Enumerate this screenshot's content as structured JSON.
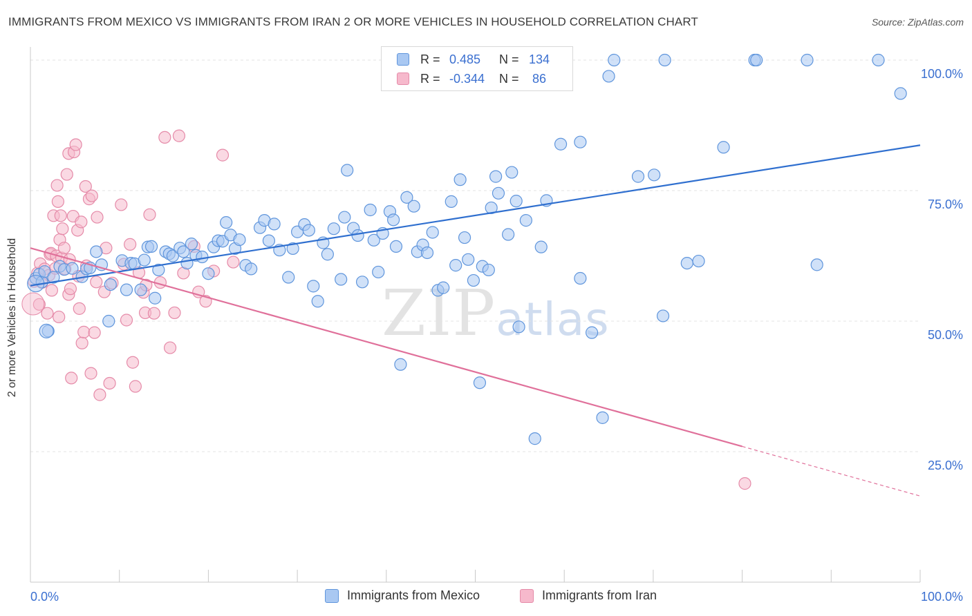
{
  "title": "IMMIGRANTS FROM MEXICO VS IMMIGRANTS FROM IRAN 2 OR MORE VEHICLES IN HOUSEHOLD CORRELATION CHART",
  "source": "Source: ZipAtlas.com",
  "watermark": {
    "zip": "ZIP",
    "atlas": "atlas"
  },
  "legend": {
    "r_label": "R =",
    "n_label": "N =",
    "mexico": {
      "r": "0.485",
      "n": "134"
    },
    "iran": {
      "r": "-0.344",
      "n": "86"
    }
  },
  "colors": {
    "mexico_fill": "#a9c8f2",
    "mexico_stroke": "#5f95dc",
    "mexico_line": "#2f6fcf",
    "iran_fill": "#f6b9cc",
    "iran_stroke": "#e58aa8",
    "iran_line": "#e0709a",
    "tick_label": "#3a6fd0",
    "grid": "#e3e3e3"
  },
  "chart_data": {
    "type": "scatter",
    "title": "IMMIGRANTS FROM MEXICO VS IMMIGRANTS FROM IRAN 2 OR MORE VEHICLES IN HOUSEHOLD CORRELATION CHART",
    "xlabel": "",
    "ylabel": "2 or more Vehicles in Household",
    "xlim": [
      0,
      100
    ],
    "ylim": [
      0,
      104.5
    ],
    "x_tick_labels": [
      "0.0%",
      "100.0%"
    ],
    "y_ticks": [
      25,
      50,
      75,
      100
    ],
    "y_tick_labels": [
      "25.0%",
      "50.0%",
      "75.0%",
      "100.0%"
    ],
    "grid": true,
    "legend_position": "top-center",
    "series": [
      {
        "name": "Immigrants from Mexico",
        "color": "#a9c8f2",
        "trend": {
          "x": [
            0,
            100
          ],
          "y": [
            56.8,
            83.7
          ]
        },
        "points": [
          [
            0.6,
            58.2
          ],
          [
            1.0,
            59.0
          ],
          [
            1.3,
            57.5
          ],
          [
            1.6,
            59.5
          ],
          [
            2.0,
            48.1
          ],
          [
            2.6,
            58.4
          ],
          [
            3.3,
            60.5
          ],
          [
            3.8,
            59.9
          ],
          [
            4.7,
            60.1
          ],
          [
            5.8,
            58.5
          ],
          [
            6.3,
            60.0
          ],
          [
            6.7,
            60.2
          ],
          [
            7.4,
            63.3
          ],
          [
            8.0,
            60.8
          ],
          [
            8.8,
            50.0
          ],
          [
            9.0,
            57.0
          ],
          [
            10.3,
            61.6
          ],
          [
            10.8,
            56.0
          ],
          [
            11.3,
            61.1
          ],
          [
            11.7,
            61.0
          ],
          [
            12.4,
            56.0
          ],
          [
            12.8,
            61.7
          ],
          [
            13.2,
            64.2
          ],
          [
            13.6,
            64.3
          ],
          [
            14.0,
            54.4
          ],
          [
            14.4,
            59.8
          ],
          [
            15.2,
            63.3
          ],
          [
            15.6,
            62.9
          ],
          [
            16.0,
            62.5
          ],
          [
            16.8,
            64.0
          ],
          [
            17.2,
            63.3
          ],
          [
            17.6,
            61.1
          ],
          [
            18.1,
            64.8
          ],
          [
            18.6,
            62.6
          ],
          [
            19.3,
            62.3
          ],
          [
            20.0,
            59.1
          ],
          [
            20.6,
            64.2
          ],
          [
            21.1,
            65.4
          ],
          [
            21.6,
            65.3
          ],
          [
            22.0,
            68.9
          ],
          [
            22.5,
            66.5
          ],
          [
            23.0,
            63.9
          ],
          [
            23.5,
            65.6
          ],
          [
            24.2,
            60.7
          ],
          [
            24.8,
            60.0
          ],
          [
            25.8,
            67.9
          ],
          [
            26.3,
            69.3
          ],
          [
            26.8,
            65.4
          ],
          [
            27.4,
            68.6
          ],
          [
            28.0,
            63.6
          ],
          [
            29.0,
            58.4
          ],
          [
            29.5,
            63.9
          ],
          [
            30.0,
            67.1
          ],
          [
            30.8,
            68.5
          ],
          [
            31.3,
            67.4
          ],
          [
            31.8,
            56.7
          ],
          [
            32.3,
            53.8
          ],
          [
            32.9,
            65.0
          ],
          [
            33.4,
            62.8
          ],
          [
            34.1,
            67.7
          ],
          [
            34.9,
            58.0
          ],
          [
            35.3,
            69.9
          ],
          [
            35.6,
            78.9
          ],
          [
            36.3,
            67.8
          ],
          [
            36.8,
            66.4
          ],
          [
            37.3,
            57.5
          ],
          [
            38.2,
            71.3
          ],
          [
            38.6,
            65.5
          ],
          [
            39.1,
            59.4
          ],
          [
            39.6,
            66.8
          ],
          [
            40.4,
            71.0
          ],
          [
            40.8,
            69.4
          ],
          [
            41.1,
            64.3
          ],
          [
            41.6,
            41.7
          ],
          [
            42.3,
            73.7
          ],
          [
            43.1,
            72.0
          ],
          [
            43.5,
            63.3
          ],
          [
            44.1,
            64.6
          ],
          [
            44.6,
            63.1
          ],
          [
            45.2,
            67.0
          ],
          [
            45.8,
            55.9
          ],
          [
            46.4,
            56.4
          ],
          [
            47.3,
            72.9
          ],
          [
            47.8,
            60.7
          ],
          [
            48.3,
            77.1
          ],
          [
            48.8,
            66.0
          ],
          [
            49.2,
            61.8
          ],
          [
            49.8,
            57.8
          ],
          [
            50.5,
            38.2
          ],
          [
            50.8,
            60.5
          ],
          [
            51.5,
            59.8
          ],
          [
            51.8,
            71.7
          ],
          [
            52.3,
            77.7
          ],
          [
            52.6,
            74.5
          ],
          [
            53.7,
            66.6
          ],
          [
            54.1,
            78.5
          ],
          [
            54.6,
            73.0
          ],
          [
            54.9,
            48.9
          ],
          [
            55.7,
            69.3
          ],
          [
            56.7,
            27.5
          ],
          [
            57.4,
            64.2
          ],
          [
            58.0,
            73.1
          ],
          [
            59.1,
            100.0
          ],
          [
            59.6,
            83.9
          ],
          [
            61.8,
            84.3
          ],
          [
            61.8,
            58.2
          ],
          [
            63.1,
            47.8
          ],
          [
            64.3,
            31.5
          ],
          [
            65.0,
            96.9
          ],
          [
            65.6,
            100.0
          ],
          [
            68.3,
            77.7
          ],
          [
            70.1,
            78.0
          ],
          [
            71.1,
            51.0
          ],
          [
            71.3,
            100.0
          ],
          [
            73.8,
            61.1
          ],
          [
            75.1,
            61.5
          ],
          [
            77.9,
            83.3
          ],
          [
            81.4,
            100.0
          ],
          [
            81.6,
            100.0
          ],
          [
            87.3,
            100.0
          ],
          [
            88.4,
            60.8
          ],
          [
            95.3,
            100.0
          ],
          [
            97.8,
            93.6
          ]
        ]
      },
      {
        "name": "Immigrants from Iran",
        "color": "#f6b9cc",
        "trend": {
          "x": [
            0,
            80
          ],
          "y": [
            64.0,
            26.0
          ],
          "dashed_to": {
            "x": 100,
            "y": 16.5
          }
        },
        "points": [
          [
            0.4,
            57.6
          ],
          [
            0.8,
            59.2
          ],
          [
            1.0,
            53.2
          ],
          [
            1.1,
            61.0
          ],
          [
            1.3,
            57.4
          ],
          [
            1.6,
            60.0
          ],
          [
            1.9,
            51.5
          ],
          [
            2.1,
            58.8
          ],
          [
            2.2,
            62.8
          ],
          [
            2.3,
            63.0
          ],
          [
            2.4,
            55.9
          ],
          [
            2.6,
            70.2
          ],
          [
            2.8,
            60.1
          ],
          [
            2.9,
            62.5
          ],
          [
            3.0,
            76.0
          ],
          [
            3.1,
            72.9
          ],
          [
            3.2,
            50.8
          ],
          [
            3.3,
            65.6
          ],
          [
            3.4,
            70.2
          ],
          [
            3.5,
            62.1
          ],
          [
            3.6,
            67.7
          ],
          [
            3.8,
            64.0
          ],
          [
            3.9,
            60.0
          ],
          [
            4.1,
            78.1
          ],
          [
            4.3,
            55.1
          ],
          [
            4.3,
            82.1
          ],
          [
            4.4,
            61.8
          ],
          [
            4.5,
            56.2
          ],
          [
            4.6,
            39.1
          ],
          [
            4.8,
            70.1
          ],
          [
            4.9,
            82.4
          ],
          [
            5.1,
            83.8
          ],
          [
            5.3,
            67.4
          ],
          [
            5.4,
            58.6
          ],
          [
            5.5,
            52.4
          ],
          [
            5.7,
            69.0
          ],
          [
            5.8,
            45.8
          ],
          [
            6.0,
            47.9
          ],
          [
            6.2,
            75.8
          ],
          [
            6.3,
            60.6
          ],
          [
            6.6,
            73.4
          ],
          [
            6.8,
            40.0
          ],
          [
            6.9,
            74.0
          ],
          [
            7.2,
            47.8
          ],
          [
            7.4,
            57.5
          ],
          [
            7.5,
            69.9
          ],
          [
            7.8,
            35.9
          ],
          [
            8.3,
            55.6
          ],
          [
            8.5,
            64.0
          ],
          [
            8.9,
            38.1
          ],
          [
            9.2,
            57.3
          ],
          [
            10.2,
            72.3
          ],
          [
            10.5,
            60.9
          ],
          [
            10.8,
            50.2
          ],
          [
            11.2,
            64.7
          ],
          [
            11.5,
            42.1
          ],
          [
            11.8,
            37.5
          ],
          [
            12.2,
            59.3
          ],
          [
            12.7,
            55.5
          ],
          [
            12.9,
            51.6
          ],
          [
            13.0,
            56.9
          ],
          [
            13.4,
            70.4
          ],
          [
            13.9,
            51.5
          ],
          [
            14.6,
            57.4
          ],
          [
            15.1,
            85.2
          ],
          [
            15.7,
            44.9
          ],
          [
            16.2,
            51.6
          ],
          [
            16.7,
            85.5
          ],
          [
            17.2,
            59.2
          ],
          [
            18.4,
            64.3
          ],
          [
            18.9,
            55.6
          ],
          [
            19.7,
            53.8
          ],
          [
            20.6,
            59.6
          ],
          [
            21.6,
            81.8
          ],
          [
            22.8,
            61.3
          ],
          [
            80.3,
            18.9
          ]
        ]
      }
    ]
  },
  "bottom_legend": {
    "mexico": "Immigrants from Mexico",
    "iran": "Immigrants from Iran"
  }
}
